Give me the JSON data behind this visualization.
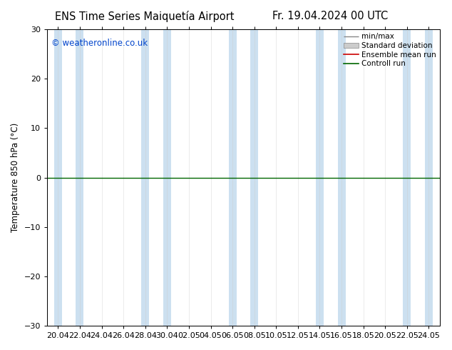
{
  "title_left": "ENS Time Series Maiquetía Airport",
  "title_right": "Fr. 19.04.2024 00 UTC",
  "ylabel": "Temperature 850 hPa (°C)",
  "watermark": "© weatheronline.co.uk",
  "ylim": [
    -30,
    30
  ],
  "yticks": [
    -30,
    -20,
    -10,
    0,
    10,
    20,
    30
  ],
  "xtick_labels": [
    "20.04",
    "22.04",
    "24.04",
    "26.04",
    "28.04",
    "30.04",
    "02.05",
    "04.05",
    "06.05",
    "08.05",
    "10.05",
    "12.05",
    "14.05",
    "16.05",
    "18.05",
    "20.05",
    "22.05",
    "24.05"
  ],
  "background_color": "#ffffff",
  "plot_bg_color": "#ffffff",
  "band_color": "#cce0f0",
  "zero_line_color": "#006600",
  "legend_labels": [
    "min/max",
    "Standard deviation",
    "Ensemble mean run",
    "Controll run"
  ],
  "legend_line_colors": [
    "#888888",
    "#aaaaaa",
    "#cc0000",
    "#006600"
  ],
  "title_fontsize": 10.5,
  "tick_fontsize": 8,
  "ylabel_fontsize": 8.5,
  "watermark_color": "#0044cc",
  "watermark_fontsize": 8.5,
  "band_positions": [
    0,
    1,
    4,
    5,
    8,
    9,
    12,
    13,
    16,
    17
  ],
  "n_xticks": 18
}
